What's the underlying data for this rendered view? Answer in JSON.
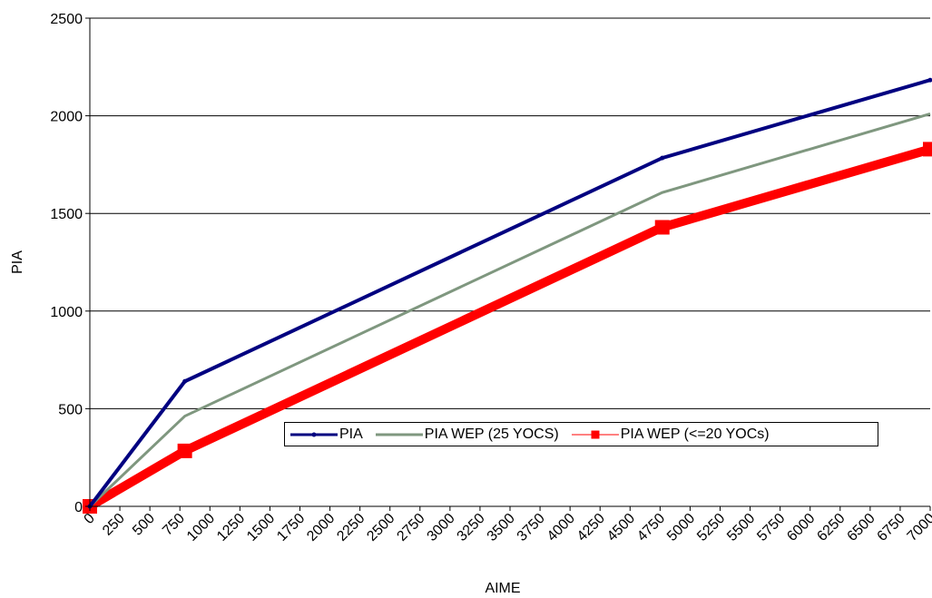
{
  "chart_data": {
    "type": "line",
    "xlabel": "AIME",
    "ylabel": "PIA",
    "xlim": [
      0,
      7000
    ],
    "ylim": [
      0,
      2500
    ],
    "x_ticks": [
      "0",
      "250",
      "500",
      "750",
      "1000",
      "1250",
      "1500",
      "1750",
      "2000",
      "2250",
      "2500",
      "2750",
      "3000",
      "3250",
      "3500",
      "3750",
      "4000",
      "4250",
      "4500",
      "4750",
      "5000",
      "5250",
      "5500",
      "5750",
      "6000",
      "6250",
      "6500",
      "6750",
      "7000"
    ],
    "y_ticks": [
      "0",
      "500",
      "1000",
      "1500",
      "2000",
      "2500"
    ],
    "grid": "horizontal",
    "legend_position": "bottom-center",
    "series": [
      {
        "name": "PIA",
        "color": "#000080",
        "x": [
          0,
          791,
          4768,
          7000
        ],
        "y": [
          0,
          640,
          1784,
          2183
        ]
      },
      {
        "name": "PIA WEP (25 YOCS)",
        "color": "#7f977f",
        "x": [
          0,
          791,
          4768,
          7000
        ],
        "y": [
          0,
          462,
          1607,
          2010
        ]
      },
      {
        "name": "PIA WEP (<=20 YOCs)",
        "color": "#ff0000",
        "x": [
          0,
          791,
          4768,
          7000
        ],
        "y": [
          0,
          284,
          1429,
          1829
        ]
      }
    ]
  }
}
